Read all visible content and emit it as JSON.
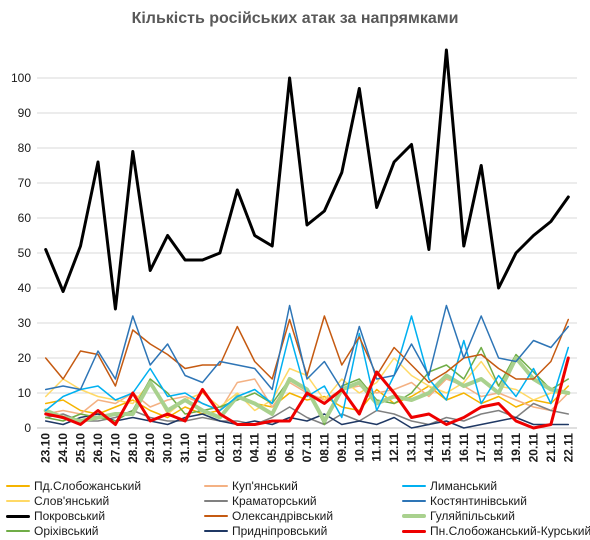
{
  "chart_data": {
    "type": "line",
    "title": "Кількість російських атак за напрямками",
    "xlabel": "",
    "ylabel": "",
    "ylim": [
      0,
      108
    ],
    "yticks": [
      0,
      10,
      20,
      30,
      40,
      50,
      60,
      70,
      80,
      90,
      100
    ],
    "grid": true,
    "legend_position": "bottom",
    "x": [
      "23.10",
      "24.10",
      "25.10",
      "26.10",
      "27.10",
      "28.10",
      "29.10",
      "30.10",
      "31.10",
      "01.11",
      "02.11",
      "03.11",
      "04.11",
      "05.11",
      "06.11",
      "07.11",
      "08.11",
      "09.11",
      "10.11",
      "11.11",
      "12.11",
      "13.11",
      "14.11",
      "15.11",
      "16.11",
      "17.11",
      "18.11",
      "19.11",
      "20.11",
      "21.11",
      "22.11"
    ],
    "series": [
      {
        "name": "Пд.Слобожанський",
        "color": "#f5b400",
        "width": 1.5,
        "values": [
          7,
          8,
          5,
          4,
          6,
          8,
          5,
          3,
          6,
          4,
          5,
          9,
          7,
          6,
          10,
          8,
          9,
          6,
          5,
          11,
          7,
          9,
          12,
          8,
          10,
          7,
          9,
          6,
          8,
          7,
          12
        ]
      },
      {
        "name": "Куп'янський",
        "color": "#f4b183",
        "width": 1.5,
        "values": [
          4,
          5,
          4,
          8,
          7,
          10,
          6,
          8,
          9,
          7,
          5,
          13,
          14,
          6,
          13,
          10,
          8,
          11,
          12,
          10,
          11,
          13,
          9,
          14,
          12,
          9,
          10,
          8,
          6,
          5,
          10
        ]
      },
      {
        "name": "Лиманський",
        "color": "#00b0f0",
        "width": 1.5,
        "values": [
          5,
          9,
          11,
          12,
          8,
          10,
          17,
          9,
          10,
          7,
          5,
          9,
          11,
          7,
          27,
          9,
          12,
          3,
          27,
          5,
          15,
          32,
          14,
          8,
          25,
          7,
          15,
          9,
          17,
          7,
          23
        ]
      },
      {
        "name": "Слов'янський",
        "color": "#ffd966",
        "width": 1.5,
        "values": [
          9,
          14,
          11,
          9,
          8,
          7,
          13,
          4,
          8,
          10,
          6,
          10,
          5,
          8,
          17,
          15,
          8,
          14,
          10,
          13,
          20,
          15,
          12,
          10,
          13,
          19,
          12,
          11,
          8,
          10,
          10
        ]
      },
      {
        "name": "Краматорський",
        "color": "#808080",
        "width": 1.5,
        "values": [
          3,
          4,
          2,
          2,
          3,
          5,
          3,
          2,
          2,
          3,
          2,
          2,
          1,
          3,
          6,
          3,
          1,
          4,
          2,
          5,
          4,
          2,
          1,
          3,
          2,
          4,
          5,
          3,
          7,
          5,
          4
        ]
      },
      {
        "name": "Костянтинівський",
        "color": "#2e75b6",
        "width": 1.5,
        "values": [
          11,
          12,
          11,
          22,
          14,
          32,
          18,
          24,
          15,
          13,
          19,
          18,
          17,
          11,
          35,
          14,
          19,
          11,
          29,
          14,
          15,
          24,
          15,
          35,
          20,
          32,
          20,
          19,
          25,
          23,
          29
        ]
      },
      {
        "name": "Покровський",
        "color": "#000000",
        "width": 3,
        "values": [
          51,
          39,
          52,
          76,
          34,
          79,
          45,
          55,
          48,
          48,
          50,
          68,
          55,
          52,
          100,
          58,
          62,
          73,
          97,
          63,
          76,
          81,
          51,
          108,
          52,
          75,
          40,
          50,
          55,
          59,
          66
        ]
      },
      {
        "name": "Олександрівський",
        "color": "#c55a11",
        "width": 1.5,
        "values": [
          20,
          14,
          22,
          21,
          12,
          28,
          24,
          21,
          17,
          18,
          18,
          29,
          19,
          14,
          31,
          15,
          32,
          18,
          26,
          15,
          23,
          18,
          13,
          16,
          20,
          21,
          17,
          14,
          14,
          19,
          31
        ]
      },
      {
        "name": "Гуляйпільський",
        "color": "#a9d18e",
        "width": 4,
        "values": [
          5,
          3,
          2,
          3,
          4,
          4,
          13,
          5,
          8,
          5,
          3,
          9,
          7,
          4,
          14,
          11,
          2,
          11,
          13,
          7,
          9,
          8,
          10,
          15,
          12,
          14,
          10,
          20,
          14,
          11,
          10
        ]
      },
      {
        "name": "Оріхівський",
        "color": "#70ad47",
        "width": 1.5,
        "values": [
          3,
          2,
          4,
          3,
          2,
          5,
          14,
          10,
          4,
          5,
          6,
          8,
          10,
          7,
          14,
          11,
          1,
          12,
          14,
          8,
          7,
          10,
          16,
          18,
          14,
          23,
          12,
          21,
          16,
          11,
          14
        ]
      },
      {
        "name": "Придніпровський",
        "color": "#1f3864",
        "width": 1.5,
        "values": [
          2,
          1,
          3,
          4,
          2,
          3,
          2,
          1,
          3,
          4,
          2,
          1,
          2,
          1,
          3,
          2,
          4,
          1,
          2,
          1,
          3,
          0,
          1,
          2,
          0,
          1,
          2,
          3,
          1,
          1,
          1
        ]
      },
      {
        "name": "Пн.Слобожанський-Курський",
        "color": "#ee0000",
        "width": 3,
        "values": [
          4,
          3,
          1,
          5,
          1,
          10,
          2,
          4,
          2,
          11,
          4,
          1,
          1,
          2,
          2,
          10,
          7,
          11,
          4,
          16,
          10,
          3,
          4,
          1,
          3,
          6,
          7,
          2,
          0,
          1,
          20
        ]
      }
    ]
  }
}
